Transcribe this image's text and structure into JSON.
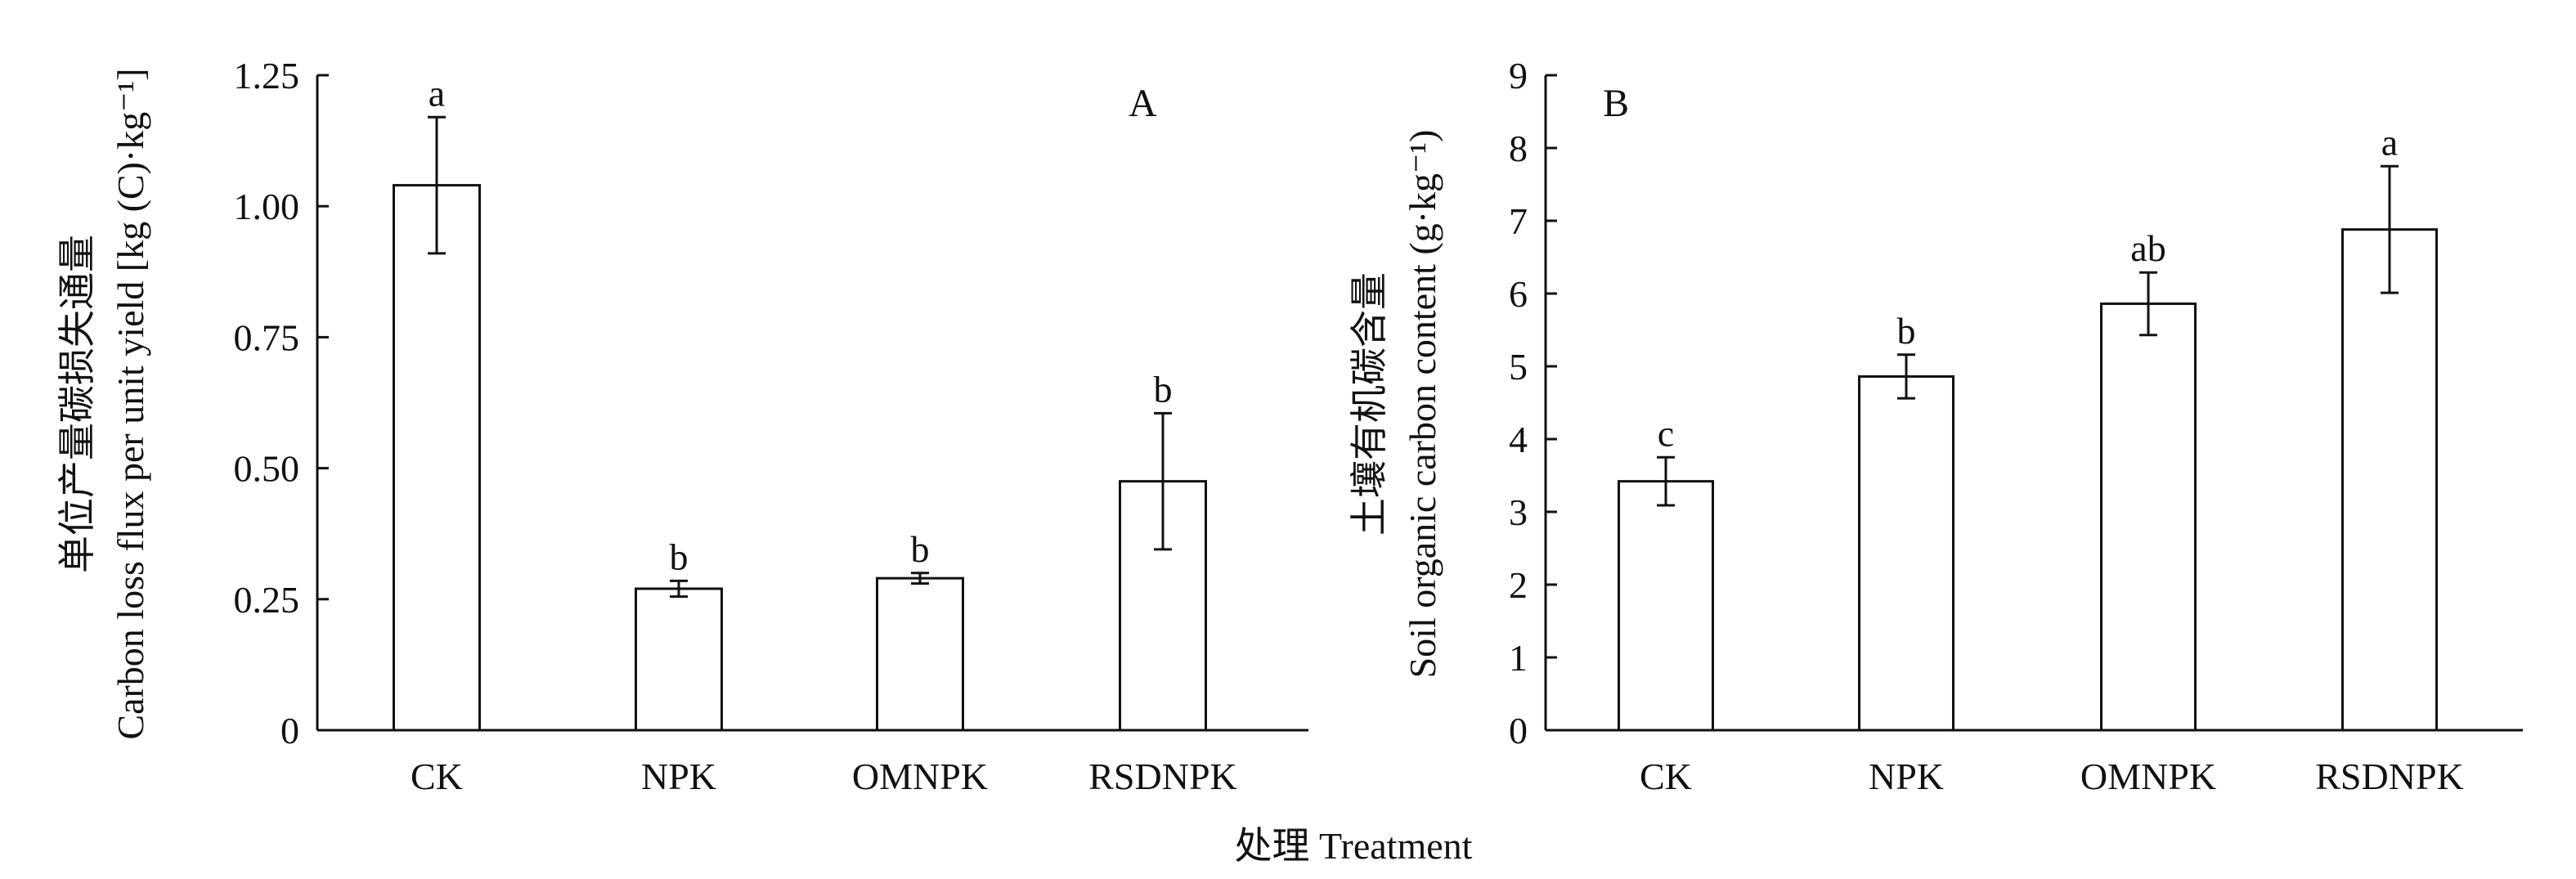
{
  "chart_data": [
    {
      "type": "bar",
      "panel_label": "A",
      "categories": [
        "CK",
        "NPK",
        "OMNPK",
        "RSDNPK"
      ],
      "values": [
        1.04,
        0.27,
        0.29,
        0.475
      ],
      "error": [
        0.13,
        0.015,
        0.01,
        0.13
      ],
      "significance": [
        "a",
        "b",
        "b",
        "b"
      ],
      "ylabel_cn": "单位产量碳损失通量",
      "ylabel_en": "Carbon loss flux per unit yield [kg (C)·kg⁻¹]",
      "ylim": [
        0,
        1.25
      ],
      "yticks": [
        0,
        0.25,
        0.5,
        0.75,
        1.0,
        1.25
      ],
      "ytick_labels": [
        "0",
        "0.25",
        "0.50",
        "0.75",
        "1.00",
        "1.25"
      ]
    },
    {
      "type": "bar",
      "panel_label": "B",
      "categories": [
        "CK",
        "NPK",
        "OMNPK",
        "RSDNPK"
      ],
      "values": [
        3.42,
        4.86,
        5.86,
        6.88
      ],
      "error": [
        0.33,
        0.3,
        0.43,
        0.87
      ],
      "significance": [
        "c",
        "b",
        "ab",
        "a"
      ],
      "ylabel_cn": "土壤有机碳含量",
      "ylabel_en": "Soil organic carbon content (g·kg⁻¹)",
      "ylim": [
        0,
        9
      ],
      "yticks": [
        0,
        1,
        2,
        3,
        4,
        5,
        6,
        7,
        8,
        9
      ],
      "ytick_labels": [
        "0",
        "1",
        "2",
        "3",
        "4",
        "5",
        "6",
        "7",
        "8",
        "9"
      ]
    }
  ],
  "xlabel": "处理 Treatment"
}
